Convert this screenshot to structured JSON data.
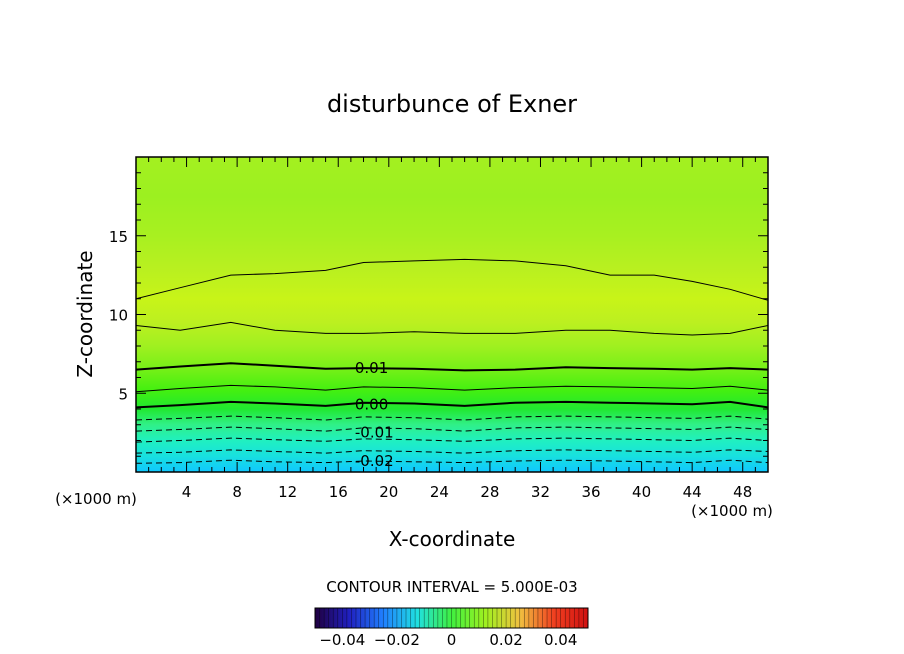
{
  "chart_data": {
    "type": "heatmap",
    "title": "disturbunce of Exner",
    "xlabel": "X-coordinate",
    "ylabel": "Z-coordinate",
    "x_unit": "(×1000 m)",
    "y_unit": "(×1000 m)",
    "xlim": [
      0,
      50
    ],
    "ylim": [
      0,
      20
    ],
    "x_ticks": [
      4,
      8,
      12,
      16,
      20,
      24,
      28,
      32,
      36,
      40,
      44,
      48
    ],
    "y_ticks": [
      5,
      10,
      15
    ],
    "contour_interval_text": "CONTOUR INTERVAL = 5.000E-03",
    "contour_labels": [
      {
        "value": "0.01",
        "x": 17.0,
        "z": 6.6
      },
      {
        "value": "0.00",
        "x": 17.0,
        "z": 4.3
      },
      {
        "value": "-0.01",
        "x": 17.0,
        "z": 2.5
      },
      {
        "value": "-0.02",
        "x": 17.0,
        "z": 0.7
      }
    ],
    "contours": [
      {
        "level": -0.025,
        "style": "dashed",
        "z": [
          0.55,
          0.6,
          0.75,
          0.65,
          0.6,
          0.7,
          0.65,
          0.6,
          0.7,
          0.75,
          0.7,
          0.65,
          0.6,
          0.75,
          0.6
        ]
      },
      {
        "level": -0.02,
        "style": "dashed",
        "z": [
          1.2,
          1.25,
          1.4,
          1.3,
          1.2,
          1.35,
          1.3,
          1.2,
          1.35,
          1.4,
          1.35,
          1.3,
          1.25,
          1.4,
          1.3
        ]
      },
      {
        "level": -0.015,
        "style": "dashed",
        "z": [
          1.9,
          2.0,
          2.15,
          2.05,
          1.95,
          2.1,
          2.05,
          1.95,
          2.1,
          2.15,
          2.1,
          2.05,
          2.0,
          2.15,
          2.0
        ]
      },
      {
        "level": -0.01,
        "style": "dashed",
        "z": [
          2.6,
          2.7,
          2.85,
          2.75,
          2.6,
          2.8,
          2.75,
          2.6,
          2.8,
          2.85,
          2.8,
          2.75,
          2.7,
          2.85,
          2.7
        ]
      },
      {
        "level": -0.005,
        "style": "dashed",
        "z": [
          3.3,
          3.4,
          3.55,
          3.45,
          3.3,
          3.5,
          3.45,
          3.3,
          3.5,
          3.55,
          3.5,
          3.45,
          3.4,
          3.55,
          3.35
        ]
      },
      {
        "level": 0.0,
        "style": "bold",
        "z": [
          4.1,
          4.25,
          4.45,
          4.35,
          4.2,
          4.4,
          4.35,
          4.2,
          4.4,
          4.45,
          4.4,
          4.35,
          4.3,
          4.45,
          4.1
        ]
      },
      {
        "level": 0.005,
        "style": "solid",
        "z": [
          5.1,
          5.3,
          5.5,
          5.4,
          5.2,
          5.4,
          5.35,
          5.2,
          5.35,
          5.45,
          5.4,
          5.35,
          5.3,
          5.45,
          5.2
        ]
      },
      {
        "level": 0.01,
        "style": "bold",
        "z": [
          6.5,
          6.7,
          6.9,
          6.75,
          6.55,
          6.6,
          6.55,
          6.45,
          6.5,
          6.65,
          6.6,
          6.55,
          6.5,
          6.6,
          6.5
        ]
      },
      {
        "level": 0.015,
        "style": "solid",
        "z": [
          9.3,
          9.0,
          9.5,
          9.0,
          8.8,
          8.8,
          8.9,
          8.8,
          8.8,
          9.0,
          9.0,
          8.8,
          8.7,
          8.8,
          9.3
        ]
      },
      {
        "level": 0.02,
        "style": "solid",
        "z": [
          11.0,
          11.7,
          12.5,
          12.6,
          12.8,
          13.3,
          13.4,
          13.5,
          13.4,
          13.1,
          12.5,
          12.5,
          12.1,
          11.6,
          10.9
        ]
      }
    ],
    "contour_x": [
      0,
      3.5,
      7.5,
      11,
      15,
      18,
      22,
      26,
      30,
      34,
      37.5,
      41,
      44,
      47,
      50
    ],
    "fill_bands": [
      {
        "z": 0,
        "color": "#10c8ff"
      },
      {
        "z": 1,
        "color": "#18e0e0"
      },
      {
        "z": 2,
        "color": "#20f0c0"
      },
      {
        "z": 3,
        "color": "#30f088"
      },
      {
        "z": 4,
        "color": "#20e830"
      },
      {
        "z": 5.2,
        "color": "#44f010"
      },
      {
        "z": 6.6,
        "color": "#78f018"
      },
      {
        "z": 8,
        "color": "#a0f020"
      },
      {
        "z": 9.5,
        "color": "#bcf020"
      },
      {
        "z": 11,
        "color": "#c8f418"
      },
      {
        "z": 13,
        "color": "#b8f020"
      },
      {
        "z": 15,
        "color": "#a8f020"
      },
      {
        "z": 17.5,
        "color": "#9cf020"
      },
      {
        "z": 20,
        "color": "#a4f020"
      }
    ],
    "colorbar": {
      "tick_labels": [
        "−0.04",
        "−0.02",
        "0",
        "0.02",
        "0.04"
      ],
      "tick_values": [
        -0.04,
        -0.02,
        0.0,
        0.02,
        0.04
      ],
      "range": [
        -0.05,
        0.05
      ],
      "colors": [
        "#200040",
        "#2020c0",
        "#2080ff",
        "#20e0e0",
        "#40f040",
        "#a0f020",
        "#f0c040",
        "#f04020",
        "#d01010"
      ]
    },
    "grid": false
  }
}
